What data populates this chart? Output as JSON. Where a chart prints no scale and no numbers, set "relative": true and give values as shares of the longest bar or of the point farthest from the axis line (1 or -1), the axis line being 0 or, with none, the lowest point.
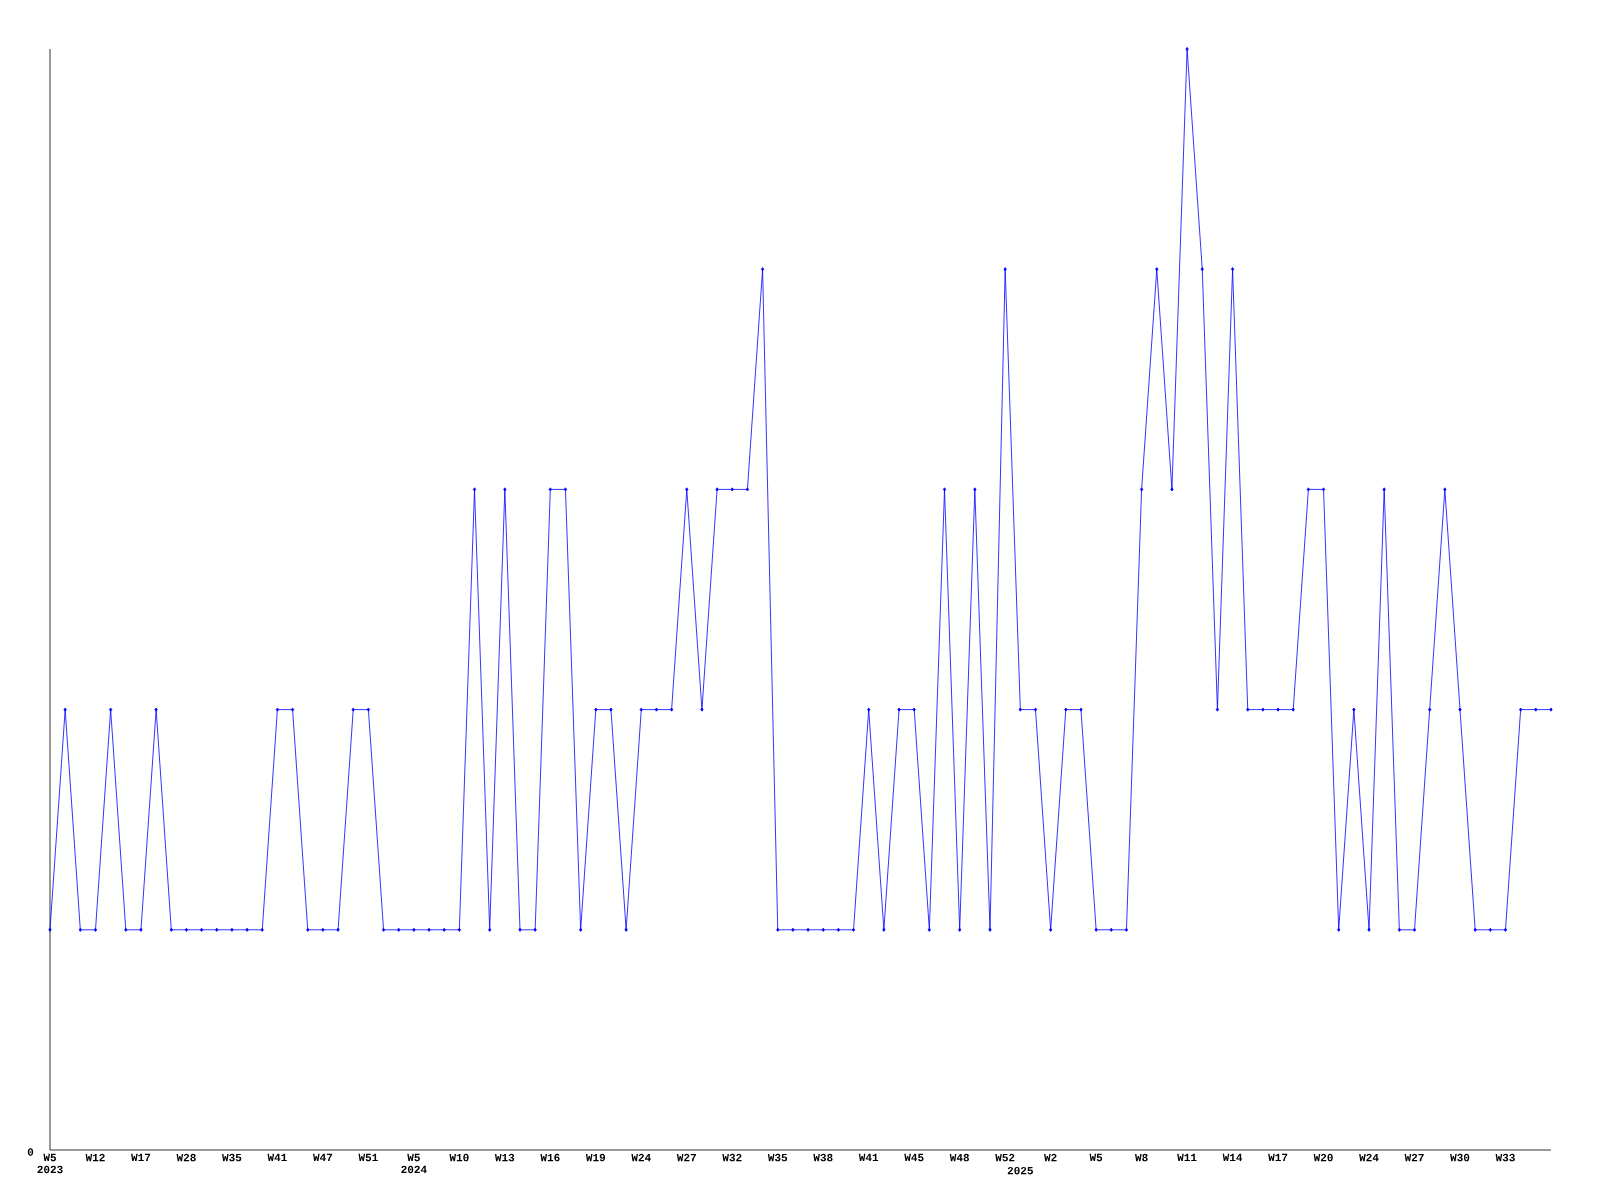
{
  "chart_data": {
    "type": "line",
    "relative": true,
    "color": "#0000ff",
    "marker": "diamond",
    "line_style": "solid",
    "grid": false,
    "annotations": [
      "0"
    ],
    "categories": [
      "W5 2023",
      null,
      null,
      "W12",
      null,
      null,
      "W17",
      null,
      null,
      "W28",
      null,
      null,
      "W35",
      null,
      null,
      "W41",
      null,
      null,
      "W47",
      null,
      null,
      "W51",
      null,
      null,
      "W5 2024",
      null,
      null,
      "W10",
      null,
      null,
      "W13",
      null,
      null,
      "W16",
      null,
      null,
      "W19",
      null,
      null,
      "W24",
      null,
      null,
      "W27",
      null,
      null,
      "W32",
      null,
      null,
      "W35",
      null,
      null,
      "W38",
      null,
      null,
      "W41",
      null,
      null,
      "W45",
      null,
      null,
      "W48",
      null,
      null,
      "W52",
      "2025",
      null,
      "W2",
      null,
      null,
      "W5",
      null,
      null,
      "W8",
      null,
      null,
      "W11",
      null,
      null,
      "W14",
      null,
      null,
      "W17",
      null,
      null,
      "W20",
      null,
      null,
      "W24",
      null,
      null,
      "W27",
      null,
      null,
      "W30",
      null,
      null,
      "W33",
      null,
      null,
      null
    ],
    "values": [
      0.2,
      0.4,
      0.2,
      0.2,
      0.4,
      0.2,
      0.2,
      0.4,
      0.2,
      0.2,
      0.2,
      0.2,
      0.2,
      0.2,
      0.2,
      0.4,
      0.4,
      0.2,
      0.2,
      0.2,
      0.4,
      0.4,
      0.2,
      0.2,
      0.2,
      0.2,
      0.2,
      0.2,
      0.6,
      0.2,
      0.6,
      0.2,
      0.2,
      0.6,
      0.6,
      0.2,
      0.4,
      0.4,
      0.2,
      0.4,
      0.4,
      0.4,
      0.6,
      0.4,
      0.6,
      0.6,
      0.6,
      0.8,
      0.2,
      0.2,
      0.2,
      0.2,
      0.2,
      0.2,
      0.4,
      0.2,
      0.4,
      0.4,
      0.2,
      0.6,
      0.2,
      0.6,
      0.2,
      0.8,
      0.4,
      0.4,
      0.2,
      0.4,
      0.4,
      0.2,
      0.2,
      0.2,
      0.6,
      0.8,
      0.6,
      1,
      0.8,
      0.4,
      0.8,
      0.4,
      0.4,
      0.4,
      0.4,
      0.6,
      0.6,
      0.2,
      0.4,
      0.2,
      0.6,
      0.2,
      0.2,
      0.4,
      0.6,
      0.4,
      0.2,
      0.2,
      0.2,
      0.4,
      0.4,
      0.4
    ]
  }
}
